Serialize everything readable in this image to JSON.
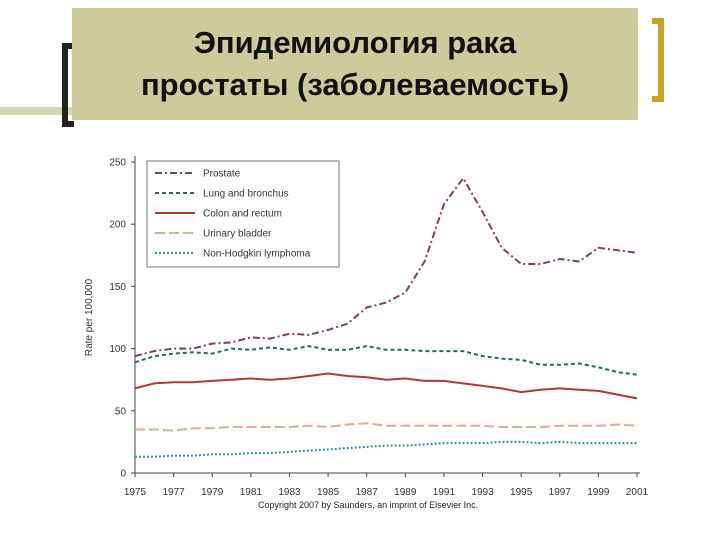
{
  "slide": {
    "title": "Эпидемиология рака\nпростаты (заболеваемость)",
    "copyright": "Copyright 2007 by Saunders, an imprint of Elsevier Inc."
  },
  "colors": {
    "title_bg": "#cdcb9b",
    "bracket_right": "#c9a227"
  },
  "chart_data": {
    "type": "line",
    "ylabel": "Rate per 100,000",
    "xlabel": "",
    "ylim": [
      0,
      250
    ],
    "xlim": [
      1975,
      2001
    ],
    "y_ticks": [
      0,
      50,
      100,
      150,
      200,
      250
    ],
    "x_ticks": [
      1975,
      1977,
      1979,
      1981,
      1983,
      1985,
      1987,
      1989,
      1991,
      1993,
      1995,
      1997,
      1999,
      2001
    ],
    "legend_position": "top-left",
    "grid": false,
    "x": [
      1975,
      1976,
      1977,
      1978,
      1979,
      1980,
      1981,
      1982,
      1983,
      1984,
      1985,
      1986,
      1987,
      1988,
      1989,
      1990,
      1991,
      1992,
      1993,
      1994,
      1995,
      1996,
      1997,
      1998,
      1999,
      2000,
      2001
    ],
    "series": [
      {
        "name": "Prostate",
        "color": "#7b3f6e",
        "dash": "7,3,2,3",
        "values": [
          94,
          98,
          100,
          100,
          104,
          105,
          109,
          108,
          112,
          111,
          115,
          120,
          133,
          137,
          145,
          170,
          216,
          237,
          210,
          181,
          168,
          168,
          172,
          170,
          181,
          179,
          177
        ]
      },
      {
        "name": "Lung and bronchus",
        "color": "#1f6b6b",
        "dash": "4,3",
        "values": [
          89,
          94,
          96,
          97,
          96,
          100,
          99,
          101,
          99,
          102,
          99,
          99,
          102,
          99,
          99,
          98,
          98,
          98,
          94,
          92,
          91,
          87,
          87,
          88,
          85,
          81,
          79
        ]
      },
      {
        "name": "Colon and rectum",
        "color": "#b03a32",
        "dash": "",
        "values": [
          68,
          72,
          73,
          73,
          74,
          75,
          76,
          75,
          76,
          78,
          80,
          78,
          77,
          75,
          76,
          74,
          74,
          72,
          70,
          68,
          65,
          67,
          68,
          67,
          66,
          63,
          60
        ]
      },
      {
        "name": "Urinary bladder",
        "color": "#e0a99a",
        "dash": "10,4",
        "values": [
          35,
          35,
          34,
          36,
          36,
          37,
          37,
          37,
          37,
          38,
          37,
          39,
          40,
          38,
          38,
          38,
          38,
          38,
          38,
          37,
          37,
          37,
          38,
          38,
          38,
          39,
          38
        ]
      },
      {
        "name": "Non-Hodgkin lymphoma",
        "color": "#2a8da6",
        "dash": "2,2",
        "values": [
          13,
          13,
          14,
          14,
          15,
          15,
          16,
          16,
          17,
          18,
          19,
          20,
          21,
          22,
          22,
          23,
          24,
          24,
          24,
          25,
          25,
          24,
          25,
          24,
          24,
          24,
          24
        ]
      }
    ]
  }
}
